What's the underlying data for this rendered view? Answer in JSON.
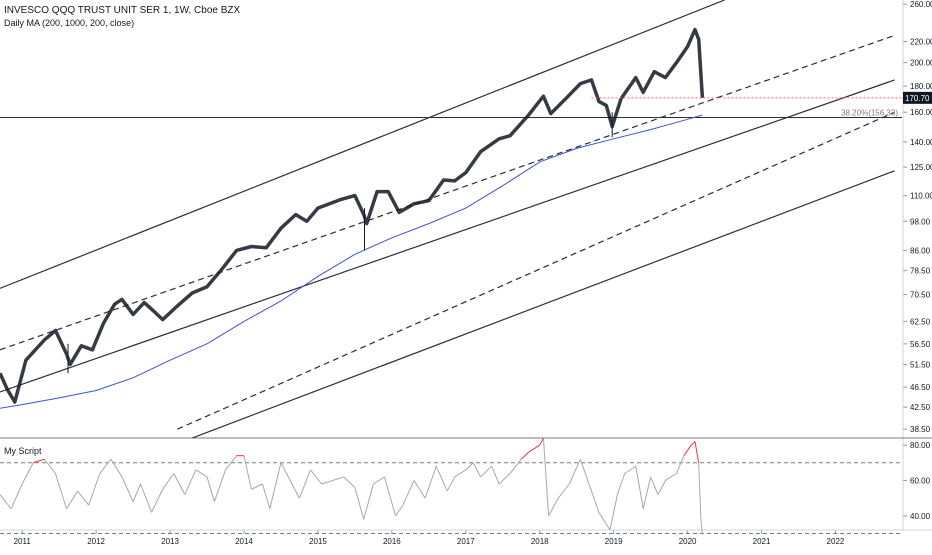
{
  "chart_data": {
    "type": "candlestick",
    "title": "INVESCO QQQ TRUST UNIT SER 1, 1W, Cboe BZX",
    "indicator_label": "Daily MA (200, 1000, 200, close)",
    "price_axis": {
      "scale": "log",
      "range": [
        37,
        265
      ],
      "ticks": [
        260.0,
        220.0,
        200.0,
        180.0,
        160.0,
        140.0,
        125.0,
        110.0,
        98.0,
        86.0,
        78.5,
        70.5,
        62.5,
        56.5,
        51.5,
        46.5,
        42.5,
        38.5
      ],
      "tick_labels": [
        "260.00",
        "220.00",
        "200.00",
        "180.00",
        "160.00",
        "140.00",
        "125.00",
        "110.00",
        "98.00",
        "86.00",
        "78.50",
        "70.50",
        "62.50",
        "56.50",
        "51.50",
        "46.50",
        "42.50",
        "38.50"
      ]
    },
    "time_axis": {
      "range": [
        2010.7,
        2022.9
      ],
      "ticks": [
        2011,
        2012,
        2013,
        2014,
        2015,
        2016,
        2017,
        2018,
        2019,
        2020,
        2021,
        2022
      ],
      "tick_labels": [
        "2011",
        "2012",
        "2013",
        "2014",
        "2015",
        "2016",
        "2017",
        "2018",
        "2019",
        "2020",
        "2021",
        "2022"
      ]
    },
    "last_price": {
      "value": 170.7,
      "label": "170.70",
      "from": 2018.7
    },
    "horizontal_line": {
      "value": 156.3
    },
    "fib_label": {
      "value": 156.3,
      "text": "38.20%(156.33)"
    },
    "price_path": [
      [
        2010.7,
        49.5
      ],
      [
        2010.8,
        46.0
      ],
      [
        2010.9,
        43.5
      ],
      [
        2011.05,
        52.5
      ],
      [
        2011.3,
        57.5
      ],
      [
        2011.45,
        60.0
      ],
      [
        2011.6,
        54.0
      ],
      [
        2011.65,
        51.5
      ],
      [
        2011.8,
        56.0
      ],
      [
        2011.95,
        55.0
      ],
      [
        2012.1,
        62.0
      ],
      [
        2012.25,
        67.5
      ],
      [
        2012.35,
        69.0
      ],
      [
        2012.5,
        64.5
      ],
      [
        2012.65,
        68.0
      ],
      [
        2012.8,
        65.0
      ],
      [
        2012.9,
        63.0
      ],
      [
        2013.1,
        67.0
      ],
      [
        2013.3,
        71.0
      ],
      [
        2013.5,
        73.0
      ],
      [
        2013.7,
        79.0
      ],
      [
        2013.9,
        86.0
      ],
      [
        2014.1,
        87.5
      ],
      [
        2014.3,
        87.0
      ],
      [
        2014.5,
        95.0
      ],
      [
        2014.7,
        101.0
      ],
      [
        2014.85,
        98.0
      ],
      [
        2015.0,
        104.0
      ],
      [
        2015.3,
        108.0
      ],
      [
        2015.5,
        110.0
      ],
      [
        2015.62,
        101.0
      ],
      [
        2015.66,
        97.0
      ],
      [
        2015.8,
        112.0
      ],
      [
        2015.95,
        112.0
      ],
      [
        2016.1,
        102.0
      ],
      [
        2016.3,
        106.0
      ],
      [
        2016.5,
        107.5
      ],
      [
        2016.7,
        118.0
      ],
      [
        2016.85,
        117.5
      ],
      [
        2017.0,
        122.0
      ],
      [
        2017.2,
        134.0
      ],
      [
        2017.45,
        142.0
      ],
      [
        2017.6,
        144.0
      ],
      [
        2017.85,
        158.0
      ],
      [
        2018.05,
        172.0
      ],
      [
        2018.15,
        159.0
      ],
      [
        2018.35,
        170.0
      ],
      [
        2018.55,
        182.0
      ],
      [
        2018.7,
        185.0
      ],
      [
        2018.8,
        168.0
      ],
      [
        2018.9,
        165.0
      ],
      [
        2018.98,
        150.0
      ],
      [
        2019.1,
        170.0
      ],
      [
        2019.3,
        187.0
      ],
      [
        2019.4,
        175.0
      ],
      [
        2019.55,
        192.0
      ],
      [
        2019.7,
        187.0
      ],
      [
        2019.85,
        200.0
      ],
      [
        2020.0,
        215.0
      ],
      [
        2020.1,
        232.0
      ],
      [
        2020.15,
        222.0
      ],
      [
        2020.2,
        170.7
      ]
    ],
    "wicks": [
      {
        "x": 2015.63,
        "high": 104.0,
        "low": 86.0
      },
      {
        "x": 2018.98,
        "high": 160.0,
        "low": 143.0
      },
      {
        "x": 2011.62,
        "high": 56.5,
        "low": 49.5
      }
    ],
    "moving_average": [
      [
        2010.7,
        42.3
      ],
      [
        2011.0,
        43.0
      ],
      [
        2011.5,
        44.3
      ],
      [
        2012.0,
        45.8
      ],
      [
        2012.5,
        48.5
      ],
      [
        2013.0,
        52.5
      ],
      [
        2013.5,
        56.5
      ],
      [
        2014.0,
        62.5
      ],
      [
        2014.5,
        68.5
      ],
      [
        2015.0,
        76.5
      ],
      [
        2015.5,
        84.5
      ],
      [
        2016.0,
        91.0
      ],
      [
        2016.5,
        97.0
      ],
      [
        2017.0,
        104.0
      ],
      [
        2017.5,
        115.0
      ],
      [
        2018.0,
        128.0
      ],
      [
        2018.5,
        136.0
      ],
      [
        2019.0,
        142.0
      ],
      [
        2019.5,
        148.0
      ],
      [
        2020.0,
        155.0
      ],
      [
        2020.2,
        158.0
      ]
    ],
    "channels": [
      {
        "style": "solid",
        "points": [
          [
            2010.7,
            72.5
          ],
          [
            2020.5,
            265.0
          ]
        ]
      },
      {
        "style": "dashed",
        "points": [
          [
            2010.7,
            55.0
          ],
          [
            2022.8,
            226.0
          ]
        ]
      },
      {
        "style": "solid",
        "points": [
          [
            2010.7,
            45.5
          ],
          [
            2022.8,
            185.0
          ]
        ]
      },
      {
        "style": "dashed",
        "points": [
          [
            2013.1,
            38.5
          ],
          [
            2022.8,
            160.0
          ]
        ]
      },
      {
        "style": "solid",
        "points": [
          [
            2013.3,
            37.0
          ],
          [
            2022.8,
            123.0
          ]
        ]
      }
    ],
    "oscillator": {
      "name": "My Script",
      "range": [
        32,
        84
      ],
      "ticks": [
        80.0,
        60.0,
        40.0
      ],
      "tick_labels": [
        "80.00",
        "60.00",
        "40.00"
      ],
      "upper_band": 70,
      "lower_band": 30,
      "path": [
        [
          2010.7,
          52
        ],
        [
          2010.85,
          44
        ],
        [
          2011.0,
          58
        ],
        [
          2011.15,
          70
        ],
        [
          2011.3,
          72
        ],
        [
          2011.45,
          64
        ],
        [
          2011.6,
          44
        ],
        [
          2011.75,
          54
        ],
        [
          2011.9,
          46
        ],
        [
          2012.05,
          64
        ],
        [
          2012.2,
          72
        ],
        [
          2012.35,
          62
        ],
        [
          2012.5,
          48
        ],
        [
          2012.6,
          58
        ],
        [
          2012.75,
          42
        ],
        [
          2012.9,
          55
        ],
        [
          2013.05,
          64
        ],
        [
          2013.2,
          52
        ],
        [
          2013.35,
          66
        ],
        [
          2013.5,
          62
        ],
        [
          2013.6,
          48
        ],
        [
          2013.75,
          66
        ],
        [
          2013.9,
          74
        ],
        [
          2014.0,
          74
        ],
        [
          2014.1,
          55
        ],
        [
          2014.25,
          58
        ],
        [
          2014.35,
          44
        ],
        [
          2014.5,
          70
        ],
        [
          2014.6,
          62
        ],
        [
          2014.75,
          50
        ],
        [
          2014.9,
          66
        ],
        [
          2015.05,
          58
        ],
        [
          2015.2,
          60
        ],
        [
          2015.35,
          62
        ],
        [
          2015.5,
          56
        ],
        [
          2015.62,
          38
        ],
        [
          2015.75,
          58
        ],
        [
          2015.9,
          62
        ],
        [
          2016.05,
          40
        ],
        [
          2016.15,
          46
        ],
        [
          2016.3,
          60
        ],
        [
          2016.45,
          50
        ],
        [
          2016.6,
          68
        ],
        [
          2016.75,
          54
        ],
        [
          2016.85,
          62
        ],
        [
          2017.0,
          66
        ],
        [
          2017.1,
          70
        ],
        [
          2017.2,
          62
        ],
        [
          2017.35,
          68
        ],
        [
          2017.45,
          58
        ],
        [
          2017.6,
          64
        ],
        [
          2017.75,
          72
        ],
        [
          2017.85,
          76
        ],
        [
          2018.0,
          80
        ],
        [
          2018.05,
          84
        ],
        [
          2018.12,
          40
        ],
        [
          2018.25,
          50
        ],
        [
          2018.4,
          58
        ],
        [
          2018.55,
          72
        ],
        [
          2018.65,
          60
        ],
        [
          2018.8,
          42
        ],
        [
          2018.95,
          32
        ],
        [
          2019.05,
          52
        ],
        [
          2019.15,
          64
        ],
        [
          2019.3,
          68
        ],
        [
          2019.4,
          44
        ],
        [
          2019.5,
          62
        ],
        [
          2019.6,
          52
        ],
        [
          2019.7,
          60
        ],
        [
          2019.85,
          64
        ],
        [
          2019.95,
          74
        ],
        [
          2020.05,
          80
        ],
        [
          2020.1,
          82
        ],
        [
          2020.15,
          70
        ],
        [
          2020.18,
          38
        ],
        [
          2020.2,
          30
        ]
      ]
    }
  }
}
